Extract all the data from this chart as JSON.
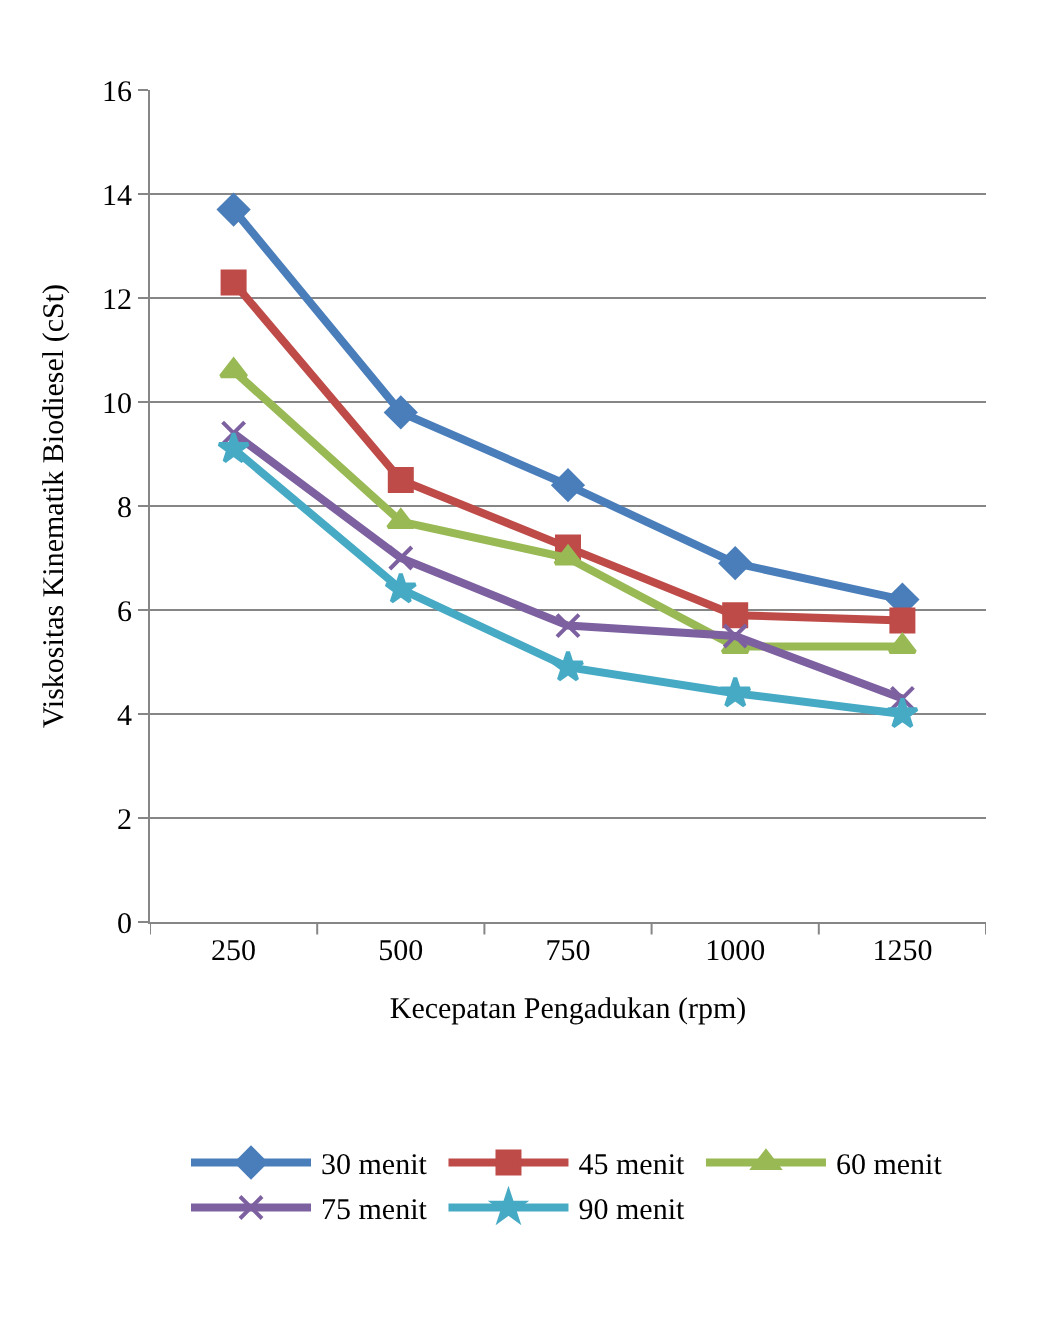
{
  "chart_data": {
    "type": "line",
    "xlabel": "Kecepatan Pengadukan (rpm)",
    "ylabel": "Viskositas Kinematik Biodiesel (cSt)",
    "categories": [
      "250",
      "500",
      "750",
      "1000",
      "1250"
    ],
    "ylim": [
      0,
      16
    ],
    "yticks": [
      0,
      2,
      4,
      6,
      8,
      10,
      12,
      14,
      16
    ],
    "grid": "y",
    "legend": "bottom",
    "series": [
      {
        "name": "30 menit",
        "color": "#4a7ebb",
        "marker": "diamond",
        "values": [
          13.7,
          9.8,
          8.4,
          6.9,
          6.2
        ]
      },
      {
        "name": "45 menit",
        "color": "#be4b48",
        "marker": "square",
        "values": [
          12.3,
          8.5,
          7.2,
          5.9,
          5.8
        ]
      },
      {
        "name": "60 menit",
        "color": "#98b954",
        "marker": "triangle",
        "values": [
          10.6,
          7.7,
          7.0,
          5.3,
          5.3
        ]
      },
      {
        "name": "75 menit",
        "color": "#7d60a0",
        "marker": "cross",
        "values": [
          9.4,
          7.0,
          5.7,
          5.5,
          4.3
        ]
      },
      {
        "name": "90 menit",
        "color": "#46aac5",
        "marker": "star",
        "values": [
          9.1,
          6.4,
          4.9,
          4.4,
          4.0
        ]
      }
    ]
  }
}
